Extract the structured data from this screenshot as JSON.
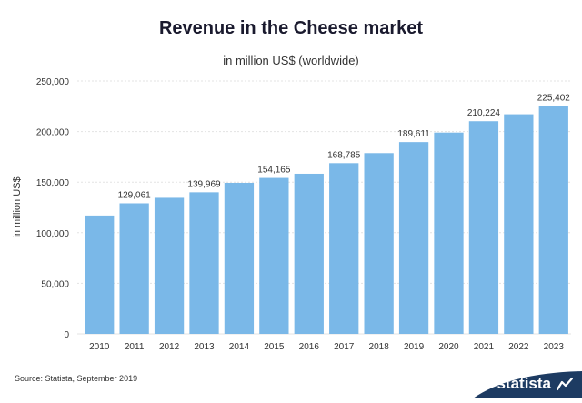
{
  "chart_data": {
    "type": "bar",
    "title": "Revenue in the Cheese market",
    "subtitle": "in million US$ (worldwide)",
    "ylabel": "in million US$",
    "xlabel": "",
    "categories": [
      "2010",
      "2011",
      "2012",
      "2013",
      "2014",
      "2015",
      "2016",
      "2017",
      "2018",
      "2019",
      "2020",
      "2021",
      "2022",
      "2023"
    ],
    "values": [
      117000,
      129061,
      134500,
      139969,
      149300,
      154165,
      158300,
      168785,
      178700,
      189611,
      199000,
      210224,
      217100,
      225402
    ],
    "data_labels": [
      "",
      "129,061",
      "",
      "139,969",
      "",
      "154,165",
      "",
      "168,785",
      "",
      "189,611",
      "",
      "210,224",
      "",
      "225,402"
    ],
    "ylim": [
      0,
      250000
    ],
    "yticks": [
      0,
      50000,
      100000,
      150000,
      200000,
      250000
    ],
    "ytick_labels": [
      "0",
      "50,000",
      "100,000",
      "150,000",
      "200,000",
      "250,000"
    ],
    "grid": true,
    "bar_color": "#7ab8e8"
  },
  "footer": {
    "source": "Source: Statista, September 2019",
    "brand": "statista"
  },
  "colors": {
    "brand_bg": "#1d3b62",
    "grid": "#e3e3e3"
  }
}
